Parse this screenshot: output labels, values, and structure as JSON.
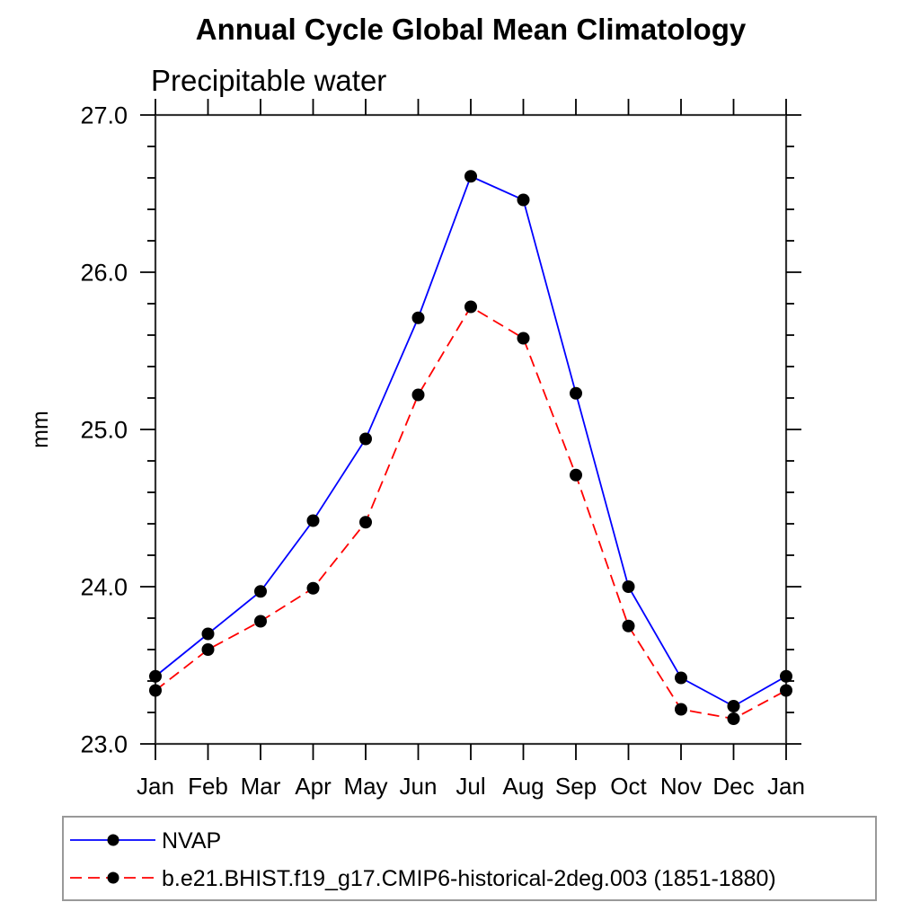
{
  "figure": {
    "title": "Annual Cycle Global Mean Climatology",
    "subtitle": "Precipitable water",
    "ylabel": "mm"
  },
  "chart_data": {
    "type": "line",
    "title": "Annual Cycle Global Mean Climatology",
    "subtitle": "Precipitable water",
    "xlabel": "",
    "ylabel": "mm",
    "x_categories": [
      "Jan",
      "Feb",
      "Mar",
      "Apr",
      "May",
      "Jun",
      "Jul",
      "Aug",
      "Sep",
      "Oct",
      "Nov",
      "Dec",
      "Jan"
    ],
    "ylim": [
      23.0,
      27.0
    ],
    "ytick_major_interval": 1.0,
    "ytick_minor_interval": 0.2,
    "ytick_labels": [
      "23.0",
      "24.0",
      "25.0",
      "26.0",
      "27.0"
    ],
    "grid": false,
    "legend_position": "bottom-left-box",
    "series": [
      {
        "name": "NVAP",
        "color": "#0000ff",
        "line_style": "solid",
        "marker": "filled-circle",
        "marker_color": "#000000",
        "values": [
          23.43,
          23.7,
          23.97,
          24.42,
          24.94,
          25.71,
          26.61,
          26.46,
          25.23,
          24.0,
          23.42,
          23.24,
          23.43
        ]
      },
      {
        "name": "b.e21.BHIST.f19_g17.CMIP6-historical-2deg.003 (1851-1880)",
        "color": "#ff0000",
        "line_style": "dashed",
        "marker": "filled-circle",
        "marker_color": "#000000",
        "values": [
          23.34,
          23.6,
          23.78,
          23.99,
          24.41,
          25.22,
          25.78,
          25.58,
          24.71,
          23.75,
          23.22,
          23.16,
          23.34
        ]
      }
    ]
  }
}
